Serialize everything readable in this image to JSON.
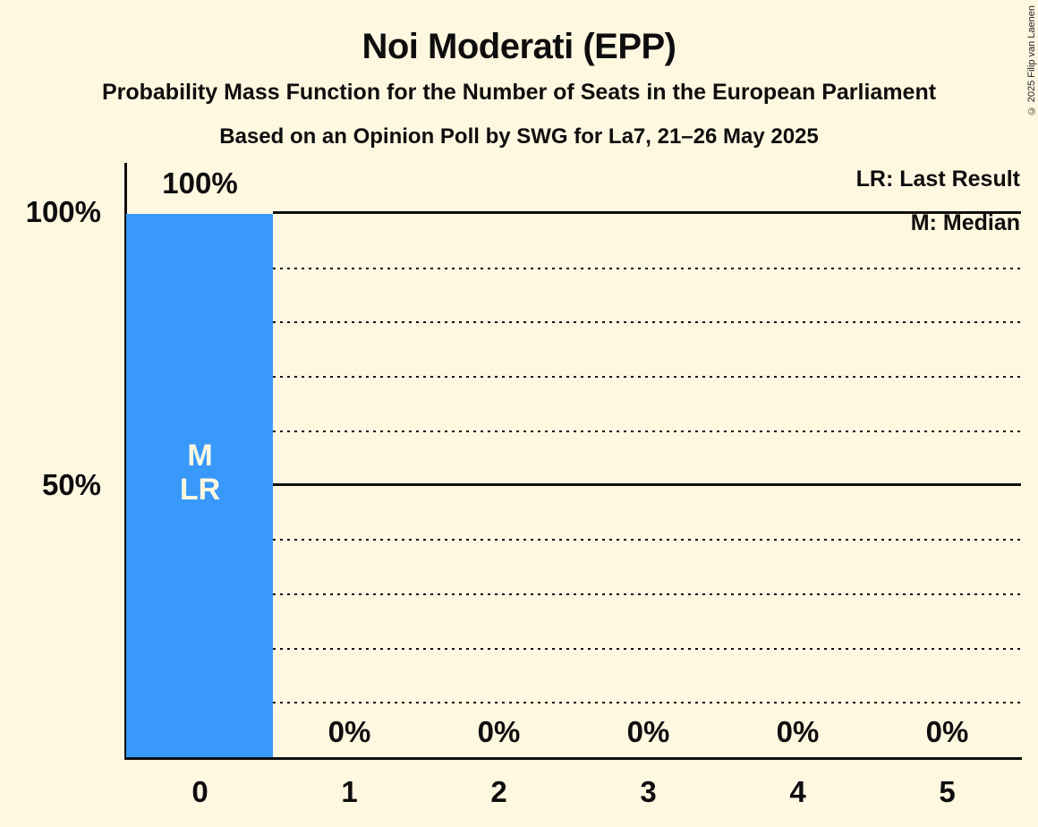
{
  "chart_data": {
    "type": "bar",
    "title": "Noi Moderati (EPP)",
    "subtitle": "Probability Mass Function for the Number of Seats in the European Parliament",
    "poll_line": "Based on an Opinion Poll by SWG for La7, 21–26 May 2025",
    "categories": [
      "0",
      "1",
      "2",
      "3",
      "4",
      "5"
    ],
    "values": [
      100,
      0,
      0,
      0,
      0,
      0
    ],
    "bar_labels": [
      "100%",
      "0%",
      "0%",
      "0%",
      "0%",
      "0%"
    ],
    "xlabel": "",
    "ylabel": "",
    "ylim": [
      0,
      100
    ],
    "y_ticks": [
      "100%",
      "50%"
    ],
    "y_gridlines_pct": [
      10,
      20,
      30,
      40,
      50,
      60,
      70,
      80,
      90,
      100
    ],
    "solid_gridlines_pct": [
      50,
      100
    ],
    "legend": {
      "lr": "LR: Last Result",
      "m": "M: Median"
    },
    "annotation": {
      "category_index": 0,
      "lines": [
        "M",
        "LR"
      ]
    },
    "colors": {
      "bar": "#3999FA",
      "background": "#FFF8E1",
      "text": "#0e0e0e",
      "bar_text": "#FFF8E1"
    },
    "copyright": "© 2025 Filip van Laenen"
  }
}
